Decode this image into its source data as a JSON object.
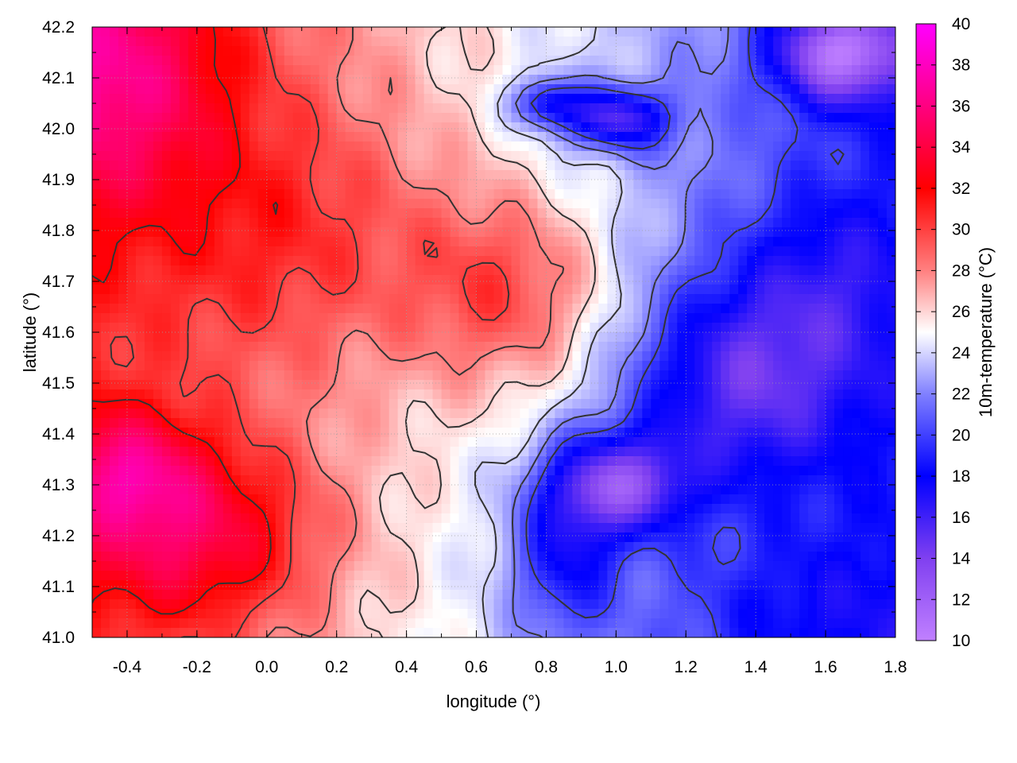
{
  "chart_data": {
    "type": "heatmap",
    "title": "",
    "xlabel": "longitude (°)",
    "ylabel": "latitude (°)",
    "colorbar_label": "10m-temperature (°C)",
    "xlim": [
      -0.5,
      1.8
    ],
    "ylim": [
      41.0,
      42.2
    ],
    "clim": [
      10,
      40
    ],
    "x_ticks": [
      -0.4,
      -0.2,
      0.0,
      0.2,
      0.4,
      0.6,
      0.8,
      1.0,
      1.2,
      1.4,
      1.6,
      1.8
    ],
    "x_tick_labels": [
      "-0.4",
      "-0.2",
      "0.0",
      "0.2",
      "0.4",
      "0.6",
      "0.8",
      "1.0",
      "1.2",
      "1.4",
      "1.6",
      "1.8"
    ],
    "y_ticks": [
      41.0,
      41.1,
      41.2,
      41.3,
      41.4,
      41.5,
      41.6,
      41.7,
      41.8,
      41.9,
      42.0,
      42.1,
      42.2
    ],
    "y_tick_labels": [
      "41.0",
      "41.1",
      "41.2",
      "41.3",
      "41.4",
      "41.5",
      "41.6",
      "41.7",
      "41.8",
      "41.9",
      "42.0",
      "42.1",
      "42.2"
    ],
    "colorbar_ticks": [
      10,
      12,
      14,
      16,
      18,
      20,
      22,
      24,
      26,
      28,
      30,
      32,
      34,
      36,
      38,
      40
    ],
    "colorbar_tick_labels": [
      "10",
      "12",
      "14",
      "16",
      "18",
      "20",
      "22",
      "24",
      "26",
      "28",
      "30",
      "32",
      "34",
      "36",
      "38",
      "40"
    ],
    "colormap": [
      {
        "value": 10,
        "color": "#c080ff"
      },
      {
        "value": 14,
        "color": "#8040f0"
      },
      {
        "value": 18,
        "color": "#0000ff"
      },
      {
        "value": 22,
        "color": "#8080ff"
      },
      {
        "value": 25,
        "color": "#ffffff"
      },
      {
        "value": 28,
        "color": "#ff8080"
      },
      {
        "value": 32,
        "color": "#ff0000"
      },
      {
        "value": 36,
        "color": "#ff0080"
      },
      {
        "value": 40,
        "color": "#ff00ff"
      }
    ],
    "grid": true,
    "contours": true,
    "field": {
      "base": 26,
      "gradient": {
        "x0": 0.4,
        "x_coef": -5,
        "y0": 41.6,
        "y_coef": 1
      },
      "features": [
        {
          "x": -0.45,
          "y": 42.1,
          "amp": 6,
          "rx": 0.35,
          "ry": 0.25
        },
        {
          "x": -0.2,
          "y": 41.2,
          "amp": 6,
          "rx": 0.35,
          "ry": 0.18
        },
        {
          "x": -0.4,
          "y": 41.33,
          "amp": 5,
          "rx": 0.2,
          "ry": 0.12
        },
        {
          "x": 0.7,
          "y": 41.68,
          "amp": 5,
          "rx": 0.3,
          "ry": 0.2
        },
        {
          "x": 0.1,
          "y": 41.8,
          "amp": 3,
          "rx": 0.4,
          "ry": 0.25
        },
        {
          "x": 1.0,
          "y": 41.3,
          "amp": -9,
          "rx": 0.2,
          "ry": 0.1
        },
        {
          "x": 0.85,
          "y": 41.15,
          "amp": -5,
          "rx": 0.15,
          "ry": 0.15
        },
        {
          "x": 1.35,
          "y": 41.5,
          "amp": -6,
          "rx": 0.3,
          "ry": 0.2
        },
        {
          "x": 1.65,
          "y": 42.15,
          "amp": -10,
          "rx": 0.2,
          "ry": 0.1
        },
        {
          "x": 1.0,
          "y": 42.02,
          "amp": -8,
          "rx": 0.15,
          "ry": 0.06
        },
        {
          "x": 0.8,
          "y": 42.05,
          "amp": -6,
          "rx": 0.1,
          "ry": 0.05
        },
        {
          "x": 1.6,
          "y": 41.7,
          "amp": -3,
          "rx": 0.25,
          "ry": 0.2
        },
        {
          "x": 1.5,
          "y": 41.05,
          "amp": -2,
          "rx": 0.4,
          "ry": 0.15
        }
      ]
    }
  }
}
